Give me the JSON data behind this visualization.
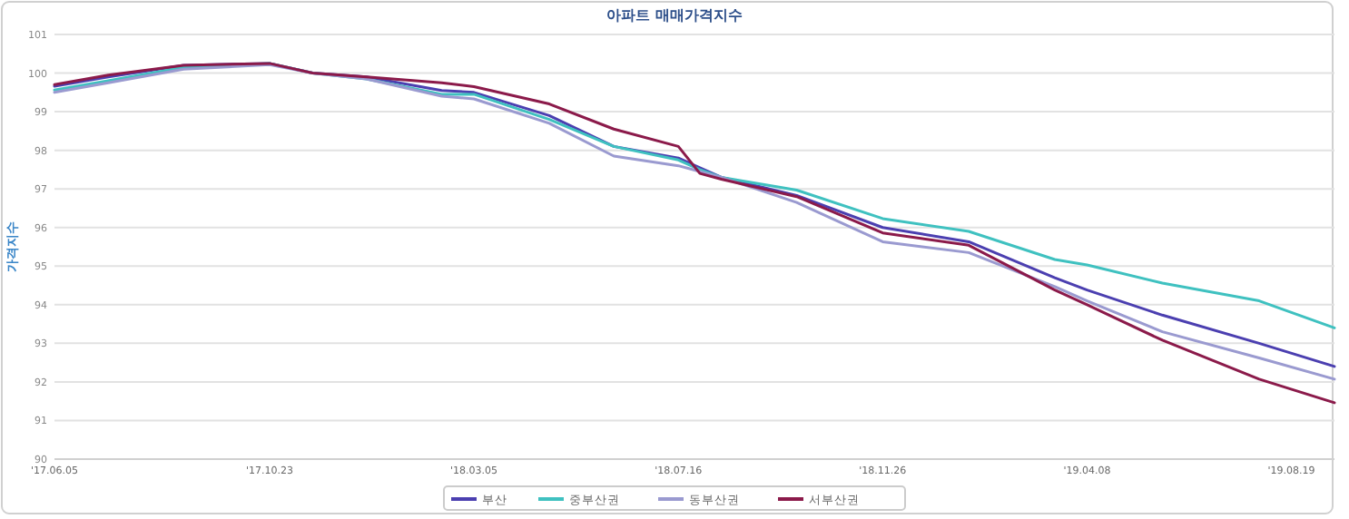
{
  "chart_data": {
    "type": "line",
    "title": "아파트 매매가격지수",
    "ylabel": "가격지수",
    "x": [
      "2017-06-05",
      "2017-07-10",
      "2017-08-28",
      "2017-10-23",
      "2017-11-20",
      "2017-12-25",
      "2018-02-12",
      "2018-03-05",
      "2018-04-23",
      "2018-06-04",
      "2018-07-16",
      "2018-07-30",
      "2018-08-13",
      "2018-10-01",
      "2018-11-26",
      "2019-01-21",
      "2019-03-18",
      "2019-04-08",
      "2019-05-27",
      "2019-07-29",
      "2019-09-16"
    ],
    "series": [
      {
        "name": "부산",
        "color": "#4b3fb0",
        "values": [
          99.66,
          99.9,
          100.2,
          100.25,
          100.0,
          99.9,
          99.55,
          99.5,
          98.9,
          98.1,
          97.8,
          97.55,
          97.3,
          96.83,
          96.0,
          95.63,
          94.7,
          94.38,
          93.73,
          93.0,
          92.4
        ]
      },
      {
        "name": "중부산권",
        "color": "#3fc1c0",
        "values": [
          99.56,
          99.8,
          100.15,
          100.25,
          100.0,
          99.85,
          99.45,
          99.45,
          98.8,
          98.1,
          97.75,
          97.5,
          97.3,
          96.97,
          96.23,
          95.9,
          95.17,
          95.03,
          94.56,
          94.1,
          93.4
        ]
      },
      {
        "name": "동부산권",
        "color": "#9a9ad0",
        "values": [
          99.5,
          99.75,
          100.1,
          100.22,
          100.0,
          99.85,
          99.4,
          99.33,
          98.7,
          97.85,
          97.6,
          97.45,
          97.3,
          96.65,
          95.63,
          95.35,
          94.47,
          94.1,
          93.3,
          92.62,
          92.07
        ]
      },
      {
        "name": "서부산권",
        "color": "#8b1a4a",
        "values": [
          99.7,
          99.95,
          100.2,
          100.25,
          100.0,
          99.9,
          99.75,
          99.65,
          99.2,
          98.55,
          98.1,
          97.4,
          97.25,
          96.8,
          95.86,
          95.54,
          94.38,
          94.0,
          93.08,
          92.07,
          91.46
        ]
      }
    ],
    "xlim": [
      "2017-06-05",
      "2019-09-16"
    ],
    "xticks": [
      {
        "value": "2017-06-05",
        "label": "'17.06.05"
      },
      {
        "value": "2017-10-23",
        "label": "'17.10.23"
      },
      {
        "value": "2018-03-05",
        "label": "'18.03.05"
      },
      {
        "value": "2018-07-16",
        "label": "'18.07.16"
      },
      {
        "value": "2018-11-26",
        "label": "'18.11.26"
      },
      {
        "value": "2019-04-08",
        "label": "'19.04.08"
      },
      {
        "value": "2019-08-19",
        "label": "'19.08.19"
      }
    ],
    "ylim": [
      90,
      101
    ],
    "yticks": [
      90,
      91,
      92,
      93,
      94,
      95,
      96,
      97,
      98,
      99,
      100,
      101
    ],
    "grid": "y",
    "legend": "bottom",
    "marker": "none",
    "line_style": "solid"
  }
}
